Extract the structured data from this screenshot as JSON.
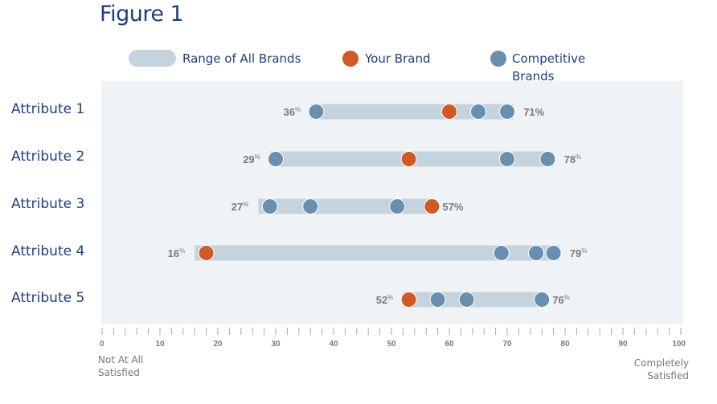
{
  "chart_data": {
    "type": "dot-range",
    "title": "Figure 1",
    "legend": [
      {
        "label": "Range of All Brands",
        "shape": "range-bar",
        "color": "#c5d3de"
      },
      {
        "label": "Your Brand",
        "shape": "dot",
        "color": "#cf5a26"
      },
      {
        "label": "Competitive Brands",
        "shape": "dot",
        "color": "#6a8fae"
      }
    ],
    "legend_position": "top",
    "xlim": [
      0,
      100
    ],
    "x_ticks": [
      0,
      10,
      20,
      30,
      40,
      50,
      60,
      70,
      80,
      90,
      100
    ],
    "x_minor_step": 2,
    "x_min_label": "Not At All Satisfied",
    "x_max_label": "Completely Satisfied",
    "categories": [
      "Attribute 1",
      "Attribute 2",
      "Attribute 3",
      "Attribute 4",
      "Attribute 5"
    ],
    "rows": [
      {
        "label": "Attribute 1",
        "min": 36,
        "max": 71,
        "min_label": "36",
        "max_label": "71%",
        "your_brand": 60,
        "competitors": [
          37,
          65,
          70
        ]
      },
      {
        "label": "Attribute 2",
        "min": 29,
        "max": 78,
        "min_label": "29",
        "max_label": "78",
        "your_brand": 53,
        "competitors": [
          30,
          70,
          77
        ]
      },
      {
        "label": "Attribute 3",
        "min": 27,
        "max": 57,
        "min_label": "27",
        "max_label": "57%",
        "your_brand": 57,
        "competitors": [
          29,
          36,
          51
        ]
      },
      {
        "label": "Attribute 4",
        "min": 16,
        "max": 79,
        "min_label": "16",
        "max_label": "79",
        "your_brand": 18,
        "competitors": [
          69,
          75,
          78
        ]
      },
      {
        "label": "Attribute 5",
        "min": 52,
        "max": 76,
        "min_label": "52",
        "max_label": "76",
        "your_brand": 53,
        "competitors": [
          58,
          63,
          76
        ]
      }
    ],
    "colors": {
      "range": "#c5d3de",
      "your_brand": "#cf5a26",
      "competitor": "#6a8fae",
      "value_label": "#7a7a7a",
      "plot_background": "#eff3f6",
      "title": "#1f3f7f"
    }
  },
  "legend": {
    "range_label": "Range of All Brands",
    "your_brand_label": "Your Brand",
    "competitive_label_line1": "Competitive",
    "competitive_label_line2": "Brands"
  },
  "axis_notes": {
    "left_line1": "Not At All",
    "left_line2": "Satisfied",
    "right_line1": "Completely",
    "right_line2": "Satisfied"
  }
}
